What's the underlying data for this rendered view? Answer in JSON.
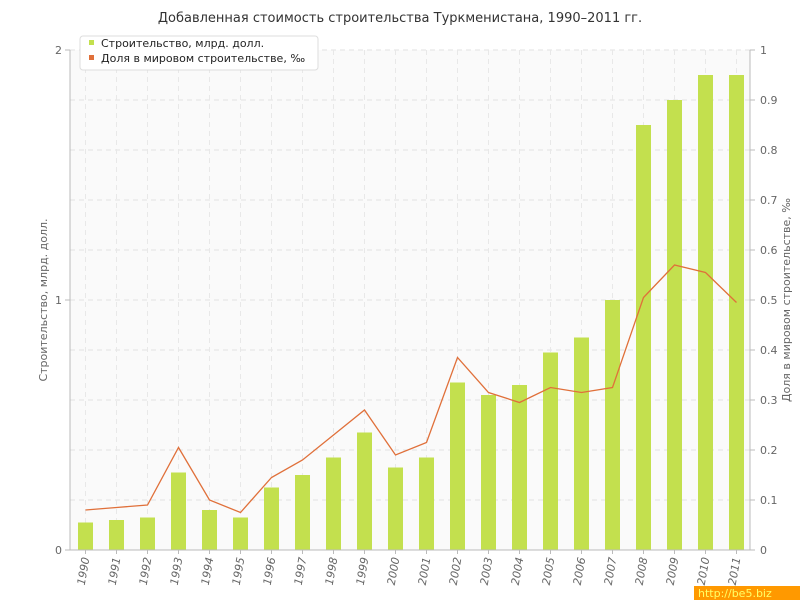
{
  "chart_data": {
    "type": "bar",
    "title": "Добавленная стоимость строительства Туркменистана, 1990–2011 гг.",
    "categories": [
      "1990",
      "1991",
      "1992",
      "1993",
      "1994",
      "1995",
      "1996",
      "1997",
      "1998",
      "1999",
      "2000",
      "2001",
      "2002",
      "2003",
      "2004",
      "2005",
      "2006",
      "2007",
      "2008",
      "2009",
      "2010",
      "2011"
    ],
    "series": [
      {
        "name": "Строительство, млрд. долл.",
        "type": "bar",
        "axis": "left",
        "color": "#c3e04e",
        "values": [
          0.11,
          0.12,
          0.13,
          0.31,
          0.16,
          0.13,
          0.25,
          0.3,
          0.37,
          0.47,
          0.33,
          0.37,
          0.67,
          0.62,
          0.66,
          0.79,
          0.85,
          1.0,
          1.7,
          1.8,
          1.9,
          1.9
        ]
      },
      {
        "name": "Доля в мировом строительстве, ‰",
        "type": "line",
        "axis": "right",
        "color": "#e0703a",
        "values": [
          0.08,
          0.085,
          0.09,
          0.205,
          0.1,
          0.075,
          0.145,
          0.18,
          0.23,
          0.28,
          0.19,
          0.215,
          0.385,
          0.315,
          0.295,
          0.325,
          0.315,
          0.325,
          0.505,
          0.57,
          0.555,
          0.495
        ]
      }
    ],
    "ylabel_left": "Строительство, млрд. долл.",
    "ylabel_right": "Доля в мировом строительстве, ‰",
    "ylim_left": [
      0,
      2
    ],
    "ylim_right": [
      0,
      1
    ],
    "yticks_left": [
      "0",
      "1",
      "2"
    ],
    "yticks_right": [
      "0",
      "0.1",
      "0.2",
      "0.3",
      "0.4",
      "0.5",
      "0.6",
      "0.7",
      "0.8",
      "0.9",
      "1"
    ],
    "grid": true,
    "legend_position": "top-left",
    "watermark": "http://be5.biz"
  }
}
